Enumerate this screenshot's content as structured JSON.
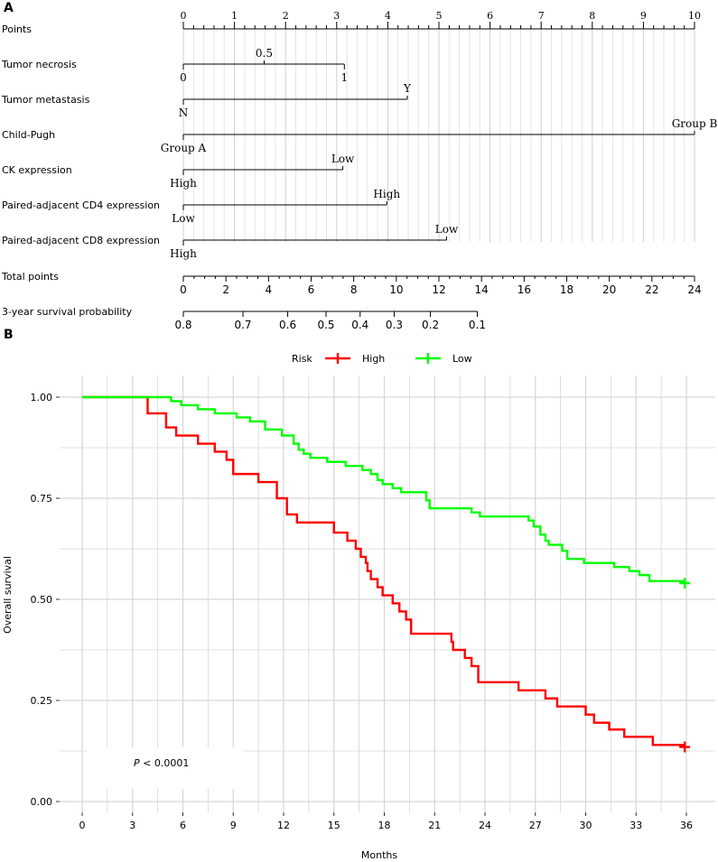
{
  "chart_data": [
    {
      "type": "nomogram",
      "panel_label": "A",
      "points_axis": {
        "label": "Points",
        "range": [
          0,
          10
        ],
        "major_ticks": [
          0,
          1,
          2,
          3,
          4,
          5,
          6,
          7,
          8,
          9,
          10
        ],
        "tick_labels": [
          "0",
          "1",
          "2",
          "3",
          "4",
          "5",
          "6",
          "7",
          "8",
          "9",
          "10"
        ]
      },
      "predictors": [
        {
          "name": "Tumor necrosis",
          "range": [
            0,
            3.15
          ],
          "labels": [
            {
              "text": "0.5",
              "points": 1.58,
              "side": "above"
            },
            {
              "text": "0",
              "points": 0,
              "side": "below"
            },
            {
              "text": "1",
              "points": 3.15,
              "side": "below"
            }
          ]
        },
        {
          "name": "Tumor metastasis",
          "range": [
            0,
            4.38
          ],
          "labels": [
            {
              "text": "Y",
              "points": 4.38,
              "side": "above"
            },
            {
              "text": "N",
              "points": 0,
              "side": "below"
            }
          ]
        },
        {
          "name": "Child-Pugh",
          "range": [
            0,
            10
          ],
          "labels": [
            {
              "text": "Group B",
              "points": 10,
              "side": "above"
            },
            {
              "text": "Group A",
              "points": 0,
              "side": "below"
            }
          ]
        },
        {
          "name": "CK expression",
          "range": [
            0,
            3.12
          ],
          "labels": [
            {
              "text": "Low",
              "points": 3.12,
              "side": "above"
            },
            {
              "text": "High",
              "points": 0,
              "side": "below"
            }
          ]
        },
        {
          "name": "Paired-adjacent CD4 expression",
          "range": [
            0,
            3.98
          ],
          "labels": [
            {
              "text": "High",
              "points": 3.98,
              "side": "above"
            },
            {
              "text": "Low",
              "points": 0,
              "side": "below"
            }
          ]
        },
        {
          "name": "Paired-adjacent CD8 expression",
          "range": [
            0,
            5.15
          ],
          "labels": [
            {
              "text": "Low",
              "points": 5.15,
              "side": "above"
            },
            {
              "text": "High",
              "points": 0,
              "side": "below"
            }
          ]
        }
      ],
      "total_points_axis": {
        "label": "Total points",
        "range": [
          0,
          24
        ],
        "major_ticks": [
          0,
          2,
          4,
          6,
          8,
          10,
          12,
          14,
          16,
          18,
          20,
          22,
          24
        ],
        "tick_labels": [
          "0",
          "2",
          "4",
          "6",
          "8",
          "10",
          "12",
          "14",
          "16",
          "18",
          "20",
          "22",
          "24"
        ]
      },
      "survival_axis": {
        "label": "3-year survival probability",
        "ticks": [
          {
            "label": "0.8",
            "total_points": 0
          },
          {
            "label": "0.7",
            "total_points": 2.8
          },
          {
            "label": "0.6",
            "total_points": 4.9
          },
          {
            "label": "0.5",
            "total_points": 6.7
          },
          {
            "label": "0.4",
            "total_points": 8.3
          },
          {
            "label": "0.3",
            "total_points": 9.9
          },
          {
            "label": "0.2",
            "total_points": 11.6
          },
          {
            "label": "0.1",
            "total_points": 13.8
          }
        ]
      }
    },
    {
      "type": "line",
      "subtype": "kaplan-meier",
      "panel_label": "B",
      "xlabel": "Months",
      "ylabel": "Overall survival",
      "xlim": [
        0,
        36
      ],
      "ylim": [
        0,
        1
      ],
      "x_ticks": [
        0,
        3,
        6,
        9,
        12,
        15,
        18,
        21,
        24,
        27,
        30,
        33,
        36
      ],
      "x_tick_labels": [
        "0",
        "3",
        "6",
        "9",
        "12",
        "15",
        "18",
        "21",
        "24",
        "27",
        "30",
        "33",
        "36"
      ],
      "y_ticks": [
        0,
        0.25,
        0.5,
        0.75,
        1
      ],
      "y_tick_labels": [
        "0.00",
        "0.25",
        "0.50",
        "0.75",
        "1.00"
      ],
      "legend": {
        "title": "Risk",
        "position": "top"
      },
      "annotation": {
        "p_label": "P",
        "p_text": " < 0.0001"
      },
      "series": [
        {
          "name": "High",
          "color": "#ff0000",
          "steps": [
            [
              0,
              1.0
            ],
            [
              3.9,
              0.96
            ],
            [
              5.0,
              0.925
            ],
            [
              5.6,
              0.905
            ],
            [
              6.9,
              0.885
            ],
            [
              7.9,
              0.865
            ],
            [
              8.6,
              0.845
            ],
            [
              9.0,
              0.81
            ],
            [
              10.5,
              0.79
            ],
            [
              11.6,
              0.75
            ],
            [
              12.2,
              0.71
            ],
            [
              12.8,
              0.69
            ],
            [
              15.0,
              0.665
            ],
            [
              15.8,
              0.645
            ],
            [
              16.3,
              0.625
            ],
            [
              16.6,
              0.605
            ],
            [
              16.9,
              0.59
            ],
            [
              17.0,
              0.57
            ],
            [
              17.2,
              0.55
            ],
            [
              17.6,
              0.53
            ],
            [
              17.9,
              0.51
            ],
            [
              18.5,
              0.49
            ],
            [
              18.9,
              0.47
            ],
            [
              19.3,
              0.45
            ],
            [
              19.6,
              0.415
            ],
            [
              22.0,
              0.395
            ],
            [
              22.1,
              0.375
            ],
            [
              22.8,
              0.355
            ],
            [
              23.2,
              0.335
            ],
            [
              23.6,
              0.295
            ],
            [
              26.0,
              0.275
            ],
            [
              27.6,
              0.255
            ],
            [
              28.3,
              0.235
            ],
            [
              30.0,
              0.215
            ],
            [
              30.5,
              0.195
            ],
            [
              31.4,
              0.178
            ],
            [
              32.3,
              0.16
            ],
            [
              34.0,
              0.14
            ],
            [
              35.9,
              0.135
            ]
          ],
          "censor": [
            [
              35.9,
              0.135
            ]
          ]
        },
        {
          "name": "Low",
          "color": "#00ff00",
          "steps": [
            [
              0,
              1.0
            ],
            [
              5.3,
              0.99
            ],
            [
              5.9,
              0.98
            ],
            [
              6.9,
              0.97
            ],
            [
              7.9,
              0.96
            ],
            [
              9.2,
              0.95
            ],
            [
              10.0,
              0.94
            ],
            [
              10.9,
              0.92
            ],
            [
              11.9,
              0.905
            ],
            [
              12.6,
              0.885
            ],
            [
              12.9,
              0.87
            ],
            [
              13.2,
              0.86
            ],
            [
              13.6,
              0.85
            ],
            [
              14.6,
              0.84
            ],
            [
              15.7,
              0.83
            ],
            [
              16.7,
              0.82
            ],
            [
              17.2,
              0.81
            ],
            [
              17.6,
              0.795
            ],
            [
              17.9,
              0.785
            ],
            [
              18.5,
              0.775
            ],
            [
              19.0,
              0.765
            ],
            [
              20.5,
              0.745
            ],
            [
              20.7,
              0.725
            ],
            [
              23.2,
              0.715
            ],
            [
              23.7,
              0.705
            ],
            [
              26.6,
              0.695
            ],
            [
              26.9,
              0.68
            ],
            [
              27.3,
              0.66
            ],
            [
              27.6,
              0.645
            ],
            [
              27.8,
              0.635
            ],
            [
              28.6,
              0.62
            ],
            [
              28.9,
              0.6
            ],
            [
              29.9,
              0.59
            ],
            [
              31.7,
              0.58
            ],
            [
              32.6,
              0.57
            ],
            [
              33.2,
              0.56
            ],
            [
              33.8,
              0.545
            ],
            [
              35.9,
              0.54
            ]
          ],
          "censor": [
            [
              35.9,
              0.54
            ]
          ]
        }
      ]
    }
  ]
}
